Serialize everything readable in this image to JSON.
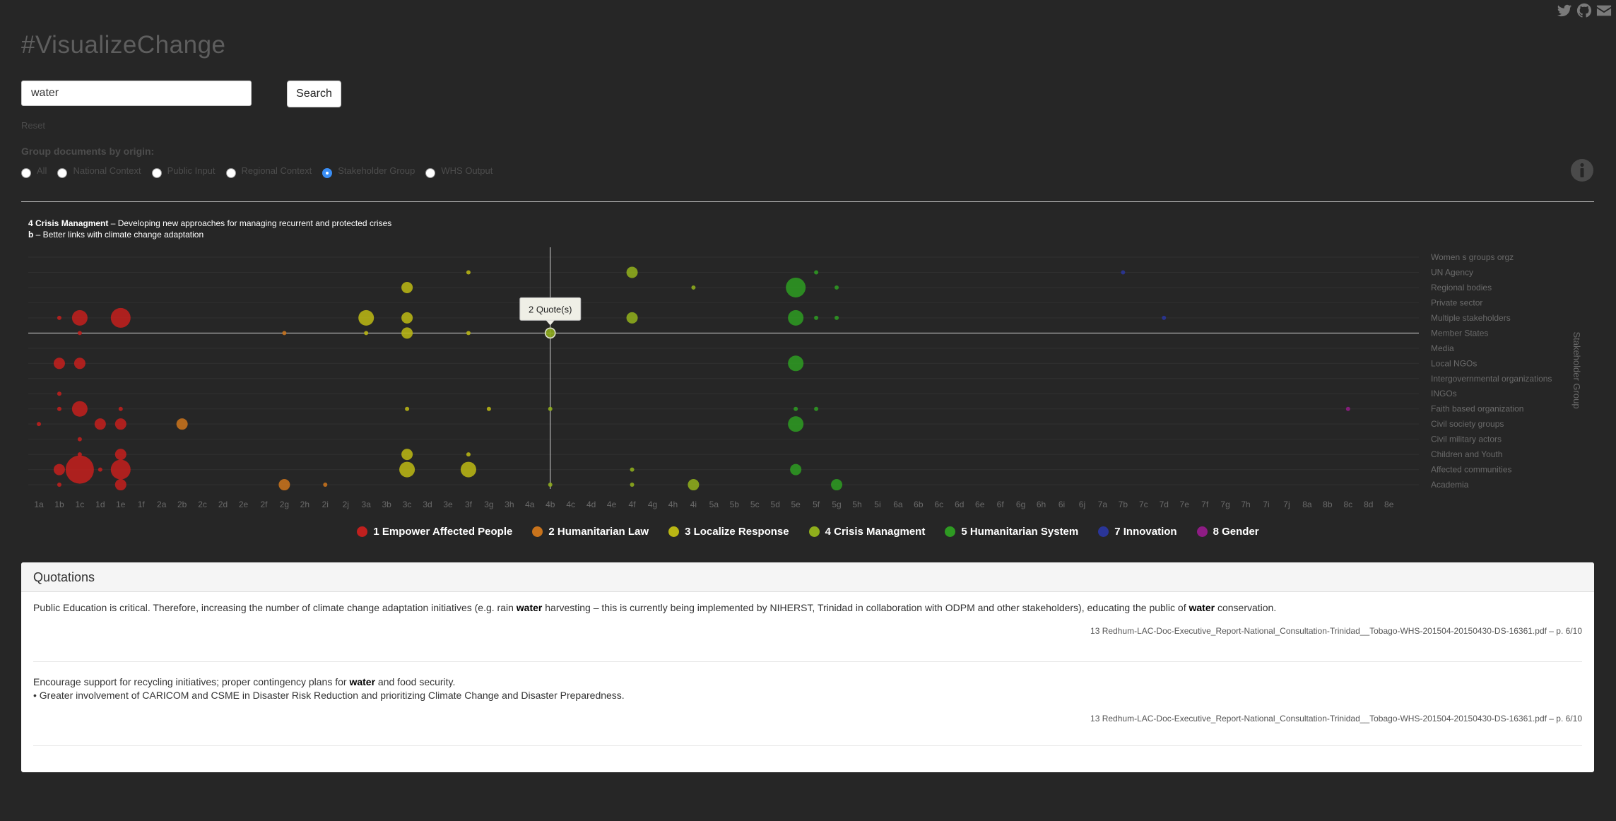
{
  "app": {
    "title": "#VisualizeChange",
    "social_icons": [
      "twitter-icon",
      "github-icon",
      "mail-icon"
    ]
  },
  "search": {
    "value": "water",
    "button_label": "Search",
    "reset_label": "Reset"
  },
  "grouping": {
    "label": "Group documents by origin:",
    "options": [
      {
        "label": "All",
        "checked": false
      },
      {
        "label": "National Context",
        "checked": false
      },
      {
        "label": "Public Input",
        "checked": false
      },
      {
        "label": "Regional Context",
        "checked": false
      },
      {
        "label": "Stakeholder Group",
        "checked": true
      },
      {
        "label": "WHS Output",
        "checked": false
      }
    ]
  },
  "selection": {
    "theme_label": "4 Crisis Managment",
    "theme_desc": " – Developing new approaches for managing recurrent and protected crises",
    "sub_label": "b",
    "sub_desc": " – Better links with climate change adaptation"
  },
  "chart_data": {
    "type": "scatter",
    "y_axis_label": "Stakeholder Group",
    "x_categories": [
      "1a",
      "1b",
      "1c",
      "1d",
      "1e",
      "1f",
      "2a",
      "2b",
      "2c",
      "2d",
      "2e",
      "2f",
      "2g",
      "2h",
      "2i",
      "2j",
      "3a",
      "3b",
      "3c",
      "3d",
      "3e",
      "3f",
      "3g",
      "3h",
      "4a",
      "4b",
      "4c",
      "4d",
      "4e",
      "4f",
      "4g",
      "4h",
      "4i",
      "5a",
      "5b",
      "5c",
      "5d",
      "5e",
      "5f",
      "5g",
      "5h",
      "5i",
      "6a",
      "6b",
      "6c",
      "6d",
      "6e",
      "6f",
      "6g",
      "6h",
      "6i",
      "6j",
      "7a",
      "7b",
      "7c",
      "7d",
      "7e",
      "7f",
      "7g",
      "7h",
      "7i",
      "7j",
      "8a",
      "8b",
      "8c",
      "8d",
      "8e"
    ],
    "y_categories": [
      "Women s groups orgz",
      "UN Agency",
      "Regional bodies",
      "Private sector",
      "Multiple stakeholders",
      "Member States",
      "Media",
      "Local NGOs",
      "Intergovernmental organizations",
      "INGOs",
      "Faith based organization",
      "Civil society groups",
      "Civil military actors",
      "Children and Youth",
      "Affected communities",
      "Academia"
    ],
    "legend": [
      {
        "name": "1 Empower Affected People",
        "color": "#c0201e"
      },
      {
        "name": "2 Humanitarian Law",
        "color": "#c8731c"
      },
      {
        "name": "3 Localize Response",
        "color": "#b9b614"
      },
      {
        "name": "4 Crisis Managment",
        "color": "#8fae1c"
      },
      {
        "name": "5 Humanitarian System",
        "color": "#2e9a22"
      },
      {
        "name": "7 Innovation",
        "color": "#2a3598"
      },
      {
        "name": "8 Gender",
        "color": "#8e1c84"
      }
    ],
    "highlight": {
      "x": "4b",
      "y": "Member States",
      "tooltip": "2 Quote(s)"
    },
    "points": [
      {
        "x": "1b",
        "y": "Multiple stakeholders",
        "size": 1,
        "theme": 1
      },
      {
        "x": "1c",
        "y": "Multiple stakeholders",
        "size": 4,
        "theme": 1
      },
      {
        "x": "1e",
        "y": "Multiple stakeholders",
        "size": 5,
        "theme": 1
      },
      {
        "x": "1c",
        "y": "Member States",
        "size": 1,
        "theme": 1
      },
      {
        "x": "1b",
        "y": "Local NGOs",
        "size": 3,
        "theme": 1
      },
      {
        "x": "1c",
        "y": "Local NGOs",
        "size": 3,
        "theme": 1
      },
      {
        "x": "1b",
        "y": "INGOs",
        "size": 1,
        "theme": 1
      },
      {
        "x": "1b",
        "y": "Faith based organization",
        "size": 1,
        "theme": 1
      },
      {
        "x": "1c",
        "y": "Faith based organization",
        "size": 4,
        "theme": 1
      },
      {
        "x": "1e",
        "y": "Faith based organization",
        "size": 1,
        "theme": 1
      },
      {
        "x": "1a",
        "y": "Civil society groups",
        "size": 1,
        "theme": 1
      },
      {
        "x": "1d",
        "y": "Civil society groups",
        "size": 3,
        "theme": 1
      },
      {
        "x": "1e",
        "y": "Civil society groups",
        "size": 3,
        "theme": 1
      },
      {
        "x": "1c",
        "y": "Civil military actors",
        "size": 1,
        "theme": 1
      },
      {
        "x": "1c",
        "y": "Children and Youth",
        "size": 1,
        "theme": 1
      },
      {
        "x": "1e",
        "y": "Children and Youth",
        "size": 3,
        "theme": 1
      },
      {
        "x": "1b",
        "y": "Affected communities",
        "size": 3,
        "theme": 1
      },
      {
        "x": "1c",
        "y": "Affected communities",
        "size": 6,
        "theme": 1
      },
      {
        "x": "1d",
        "y": "Affected communities",
        "size": 1,
        "theme": 1
      },
      {
        "x": "1e",
        "y": "Affected communities",
        "size": 5,
        "theme": 1
      },
      {
        "x": "1b",
        "y": "Academia",
        "size": 1,
        "theme": 1
      },
      {
        "x": "1e",
        "y": "Academia",
        "size": 3,
        "theme": 1
      },
      {
        "x": "2g",
        "y": "Member States",
        "size": 1,
        "theme": 2
      },
      {
        "x": "2b",
        "y": "Civil society groups",
        "size": 3,
        "theme": 2
      },
      {
        "x": "2g",
        "y": "Academia",
        "size": 3,
        "theme": 2
      },
      {
        "x": "2i",
        "y": "Academia",
        "size": 1,
        "theme": 2
      },
      {
        "x": "3f",
        "y": "UN Agency",
        "size": 1,
        "theme": 3
      },
      {
        "x": "3c",
        "y": "Regional bodies",
        "size": 3,
        "theme": 3
      },
      {
        "x": "3a",
        "y": "Multiple stakeholders",
        "size": 4,
        "theme": 3
      },
      {
        "x": "3c",
        "y": "Multiple stakeholders",
        "size": 3,
        "theme": 3
      },
      {
        "x": "3a",
        "y": "Member States",
        "size": 1,
        "theme": 3
      },
      {
        "x": "3c",
        "y": "Member States",
        "size": 3,
        "theme": 3
      },
      {
        "x": "3f",
        "y": "Member States",
        "size": 1,
        "theme": 3
      },
      {
        "x": "3c",
        "y": "Faith based organization",
        "size": 1,
        "theme": 3
      },
      {
        "x": "3g",
        "y": "Faith based organization",
        "size": 1,
        "theme": 3
      },
      {
        "x": "3c",
        "y": "Children and Youth",
        "size": 3,
        "theme": 3
      },
      {
        "x": "3f",
        "y": "Children and Youth",
        "size": 1,
        "theme": 3
      },
      {
        "x": "3c",
        "y": "Affected communities",
        "size": 4,
        "theme": 3
      },
      {
        "x": "3f",
        "y": "Affected communities",
        "size": 4,
        "theme": 3
      },
      {
        "x": "4f",
        "y": "UN Agency",
        "size": 3,
        "theme": 4
      },
      {
        "x": "4i",
        "y": "Regional bodies",
        "size": 1,
        "theme": 4
      },
      {
        "x": "4f",
        "y": "Multiple stakeholders",
        "size": 3,
        "theme": 4
      },
      {
        "x": "4b",
        "y": "Member States",
        "size": 3,
        "theme": 4
      },
      {
        "x": "4b",
        "y": "Faith based organization",
        "size": 1,
        "theme": 4
      },
      {
        "x": "4f",
        "y": "Affected communities",
        "size": 1,
        "theme": 4
      },
      {
        "x": "4b",
        "y": "Academia",
        "size": 1,
        "theme": 4
      },
      {
        "x": "4f",
        "y": "Academia",
        "size": 1,
        "theme": 4
      },
      {
        "x": "4i",
        "y": "Academia",
        "size": 3,
        "theme": 4
      },
      {
        "x": "5f",
        "y": "UN Agency",
        "size": 1,
        "theme": 5
      },
      {
        "x": "5e",
        "y": "Regional bodies",
        "size": 5,
        "theme": 5
      },
      {
        "x": "5g",
        "y": "Regional bodies",
        "size": 1,
        "theme": 5
      },
      {
        "x": "5e",
        "y": "Multiple stakeholders",
        "size": 4,
        "theme": 5
      },
      {
        "x": "5f",
        "y": "Multiple stakeholders",
        "size": 1,
        "theme": 5
      },
      {
        "x": "5g",
        "y": "Multiple stakeholders",
        "size": 1,
        "theme": 5
      },
      {
        "x": "5e",
        "y": "Local NGOs",
        "size": 4,
        "theme": 5
      },
      {
        "x": "5e",
        "y": "Faith based organization",
        "size": 1,
        "theme": 5
      },
      {
        "x": "5f",
        "y": "Faith based organization",
        "size": 1,
        "theme": 5
      },
      {
        "x": "5e",
        "y": "Civil society groups",
        "size": 4,
        "theme": 5
      },
      {
        "x": "5e",
        "y": "Affected communities",
        "size": 3,
        "theme": 5
      },
      {
        "x": "5g",
        "y": "Academia",
        "size": 3,
        "theme": 5
      },
      {
        "x": "7b",
        "y": "UN Agency",
        "size": 1,
        "theme": 7
      },
      {
        "x": "7d",
        "y": "Multiple stakeholders",
        "size": 1,
        "theme": 7
      },
      {
        "x": "8c",
        "y": "Faith based organization",
        "size": 1,
        "theme": 8
      }
    ]
  },
  "quotations": {
    "title": "Quotations",
    "items": [
      {
        "before": "Public Education is critical. Therefore, increasing the number of climate change adaptation initiatives (e.g. rain ",
        "kw1": "water",
        "middle": " harvesting – this is currently being implemented by NIHERST, Trinidad in collaboration with ODPM and other stakeholders), educating the public of ",
        "kw2": "water",
        "after": " conservation.",
        "source": "13 Redhum-LAC-Doc-Executive_Report-National_Consultation-Trinidad__Tobago-WHS-201504-20150430-DS-16361.pdf – p. 6/10"
      },
      {
        "before": "Encourage support for recycling initiatives; proper contingency plans for ",
        "kw1": "water",
        "middle": " and food security.",
        "line2": "• Greater involvement of CARICOM and CSME in Disaster Risk Reduction and prioritizing Climate Change and Disaster Preparedness.",
        "source": "13 Redhum-LAC-Doc-Executive_Report-National_Consultation-Trinidad__Tobago-WHS-201504-20150430-DS-16361.pdf – p. 6/10"
      }
    ]
  }
}
